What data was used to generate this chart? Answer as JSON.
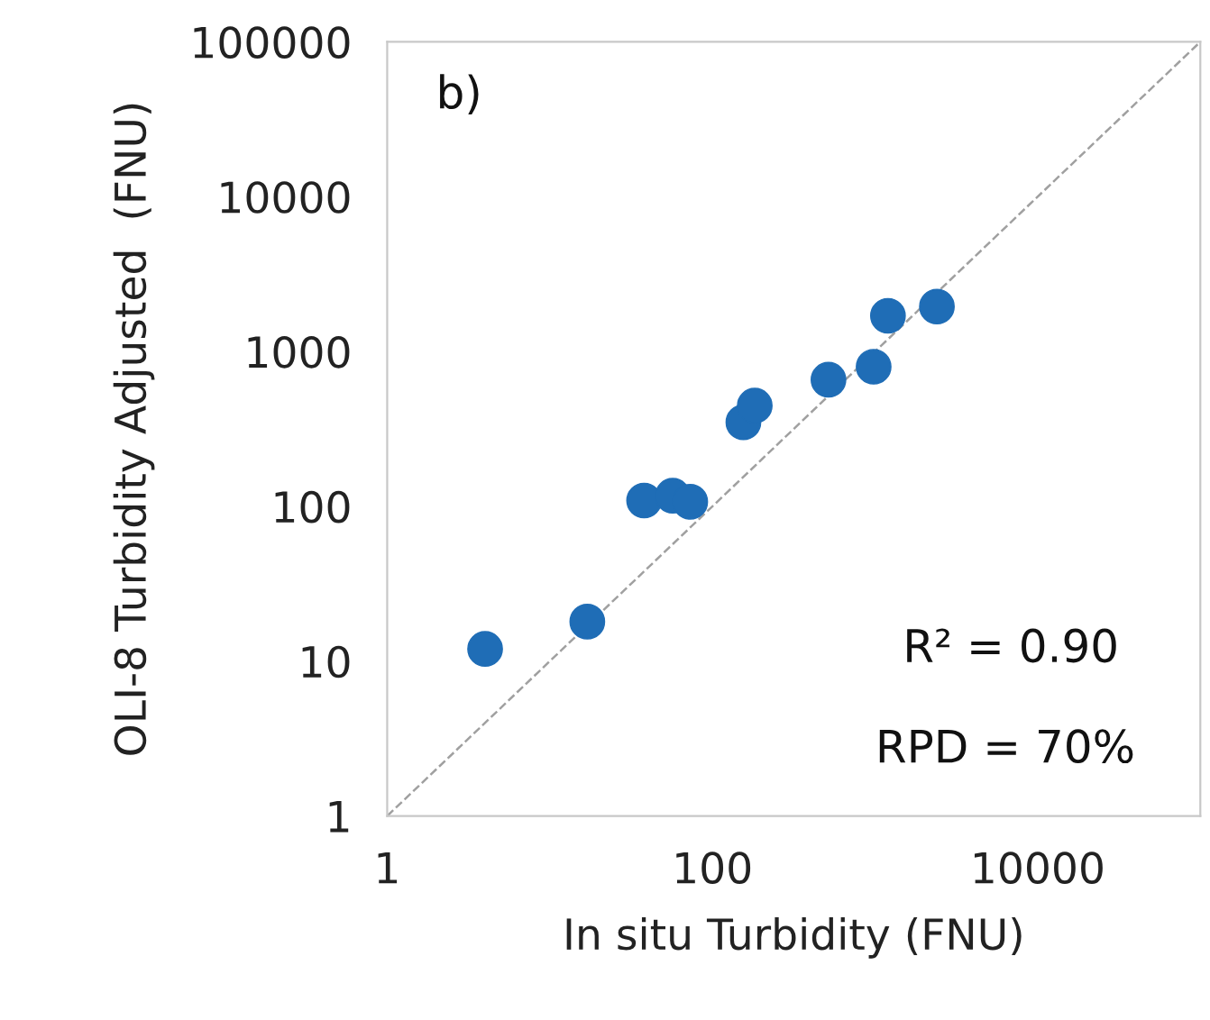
{
  "chart_data": {
    "type": "scatter",
    "xlabel": "In situ Turbidity (FNU)",
    "ylabel": "OLI-8 Turbidity Adjusted  (FNU)",
    "log": "xy",
    "xlim": [
      1,
      100000
    ],
    "xticks": [
      1,
      100,
      10000
    ],
    "ylim": [
      1,
      100000
    ],
    "yticks": [
      1,
      10,
      100,
      1000,
      10000,
      100000
    ],
    "grid": false,
    "legend": false,
    "marker": "circle",
    "series": [
      {
        "color": "#1f6db6",
        "x": [
          4,
          17,
          38,
          57,
          73,
          155,
          182,
          517,
          980,
          1200,
          2400
        ],
        "values": [
          12,
          18,
          109,
          117,
          107,
          349,
          447,
          657,
          797,
          1700,
          1950
        ]
      },
      {
        "type": "line",
        "color": "#a0a0a0",
        "line_style": "dashed",
        "marker": "none",
        "x": [
          1,
          100000
        ],
        "values": [
          1,
          100000
        ]
      }
    ],
    "annotations": [
      "b)",
      "R² = 0.90",
      "RPD = 70%"
    ]
  }
}
